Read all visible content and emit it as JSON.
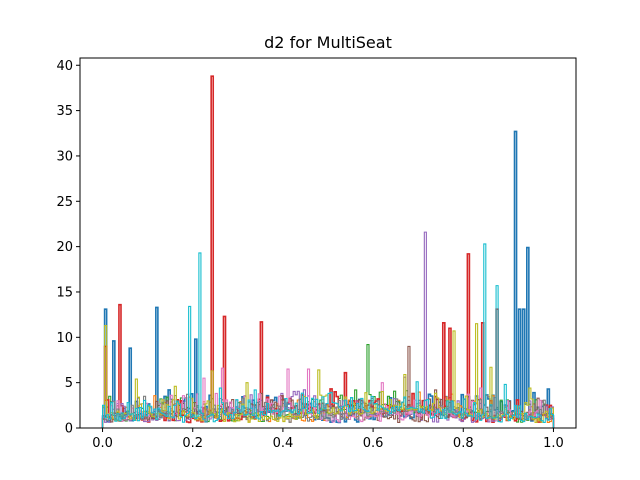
{
  "chart_data": {
    "type": "line",
    "style": "step-histogram",
    "title": "d2 for MultiSeat",
    "xlabel": "",
    "ylabel": "",
    "xlim": [
      -0.05,
      1.05
    ],
    "ylim": [
      0,
      40.8
    ],
    "xticks": [
      "0.0",
      "0.2",
      "0.4",
      "0.6",
      "0.8",
      "1.0"
    ],
    "xtick_values": [
      0.0,
      0.2,
      0.4,
      0.6,
      0.8,
      1.0
    ],
    "yticks": [
      "0",
      "5",
      "10",
      "15",
      "20",
      "25",
      "30",
      "35",
      "40"
    ],
    "ytick_values": [
      0,
      5,
      10,
      15,
      20,
      25,
      30,
      35,
      40
    ],
    "grid": false,
    "legend": "none",
    "series": [
      {
        "color": "#1f77b4",
        "peaks": [
          [
            0.005,
            13.1
          ],
          [
            0.025,
            9.6
          ],
          [
            0.06,
            8.8
          ],
          [
            0.12,
            13.3
          ],
          [
            0.145,
            4.2
          ],
          [
            0.205,
            9.8
          ],
          [
            0.92,
            32.7
          ],
          [
            0.925,
            13.1
          ],
          [
            0.935,
            13.1
          ],
          [
            0.945,
            19.9
          ],
          [
            0.96,
            3.9
          ],
          [
            0.99,
            4.3
          ]
        ]
      },
      {
        "color": "#ff7f0e",
        "peaks": [
          [
            0.05,
            2.3
          ],
          [
            0.15,
            1.9
          ],
          [
            0.3,
            2.2
          ],
          [
            0.5,
            2.0
          ],
          [
            0.7,
            2.4
          ],
          [
            0.82,
            2.9
          ],
          [
            0.95,
            2.0
          ]
        ]
      },
      {
        "color": "#2ca02c",
        "peaks": [
          [
            0.015,
            3.5
          ],
          [
            0.1,
            2.4
          ],
          [
            0.2,
            2.8
          ],
          [
            0.38,
            2.6
          ],
          [
            0.59,
            9.2
          ],
          [
            0.6,
            3.0
          ],
          [
            0.77,
            2.8
          ],
          [
            0.9,
            3.1
          ],
          [
            0.97,
            2.2
          ]
        ]
      },
      {
        "color": "#d62728",
        "peaks": [
          [
            0.005,
            9.0
          ],
          [
            0.035,
            13.6
          ],
          [
            0.24,
            38.8
          ],
          [
            0.27,
            12.3
          ],
          [
            0.35,
            11.7
          ],
          [
            0.54,
            6.1
          ],
          [
            0.76,
            11.6
          ],
          [
            0.77,
            11.0
          ],
          [
            0.815,
            19.2
          ],
          [
            0.845,
            11.6
          ],
          [
            0.875,
            13.1
          ]
        ]
      },
      {
        "color": "#9467bd",
        "peaks": [
          [
            0.03,
            2.7
          ],
          [
            0.22,
            2.3
          ],
          [
            0.55,
            2.2
          ],
          [
            0.67,
            5.6
          ],
          [
            0.715,
            21.6
          ],
          [
            0.79,
            3.0
          ]
        ]
      },
      {
        "color": "#8c564b",
        "peaks": [
          [
            0.26,
            2.4
          ],
          [
            0.49,
            2.0
          ],
          [
            0.68,
            9.0
          ],
          [
            0.74,
            4.2
          ],
          [
            0.85,
            2.6
          ]
        ]
      },
      {
        "color": "#e377c2",
        "peaks": [
          [
            0.03,
            3.0
          ],
          [
            0.225,
            5.5
          ],
          [
            0.265,
            6.6
          ],
          [
            0.41,
            6.5
          ],
          [
            0.455,
            6.5
          ],
          [
            0.62,
            5.0
          ],
          [
            0.84,
            4.4
          ]
        ]
      },
      {
        "color": "#7f7f7f",
        "peaks": [
          [
            0.1,
            1.6
          ],
          [
            0.4,
            1.8
          ],
          [
            0.66,
            1.7
          ],
          [
            0.93,
            1.6
          ]
        ]
      },
      {
        "color": "#bcbd22",
        "peaks": [
          [
            0.005,
            11.3
          ],
          [
            0.075,
            5.4
          ],
          [
            0.16,
            4.6
          ],
          [
            0.24,
            6.3
          ],
          [
            0.32,
            5.0
          ],
          [
            0.48,
            6.4
          ],
          [
            0.67,
            5.9
          ],
          [
            0.78,
            10.7
          ],
          [
            0.83,
            11.5
          ],
          [
            0.865,
            6.7
          ],
          [
            0.95,
            4.4
          ]
        ]
      },
      {
        "color": "#17becf",
        "peaks": [
          [
            0.02,
            2.8
          ],
          [
            0.19,
            13.4
          ],
          [
            0.215,
            19.3
          ],
          [
            0.26,
            4.4
          ],
          [
            0.34,
            4.2
          ],
          [
            0.7,
            5.1
          ],
          [
            0.85,
            20.3
          ],
          [
            0.875,
            15.7
          ],
          [
            0.895,
            4.8
          ]
        ]
      }
    ]
  }
}
